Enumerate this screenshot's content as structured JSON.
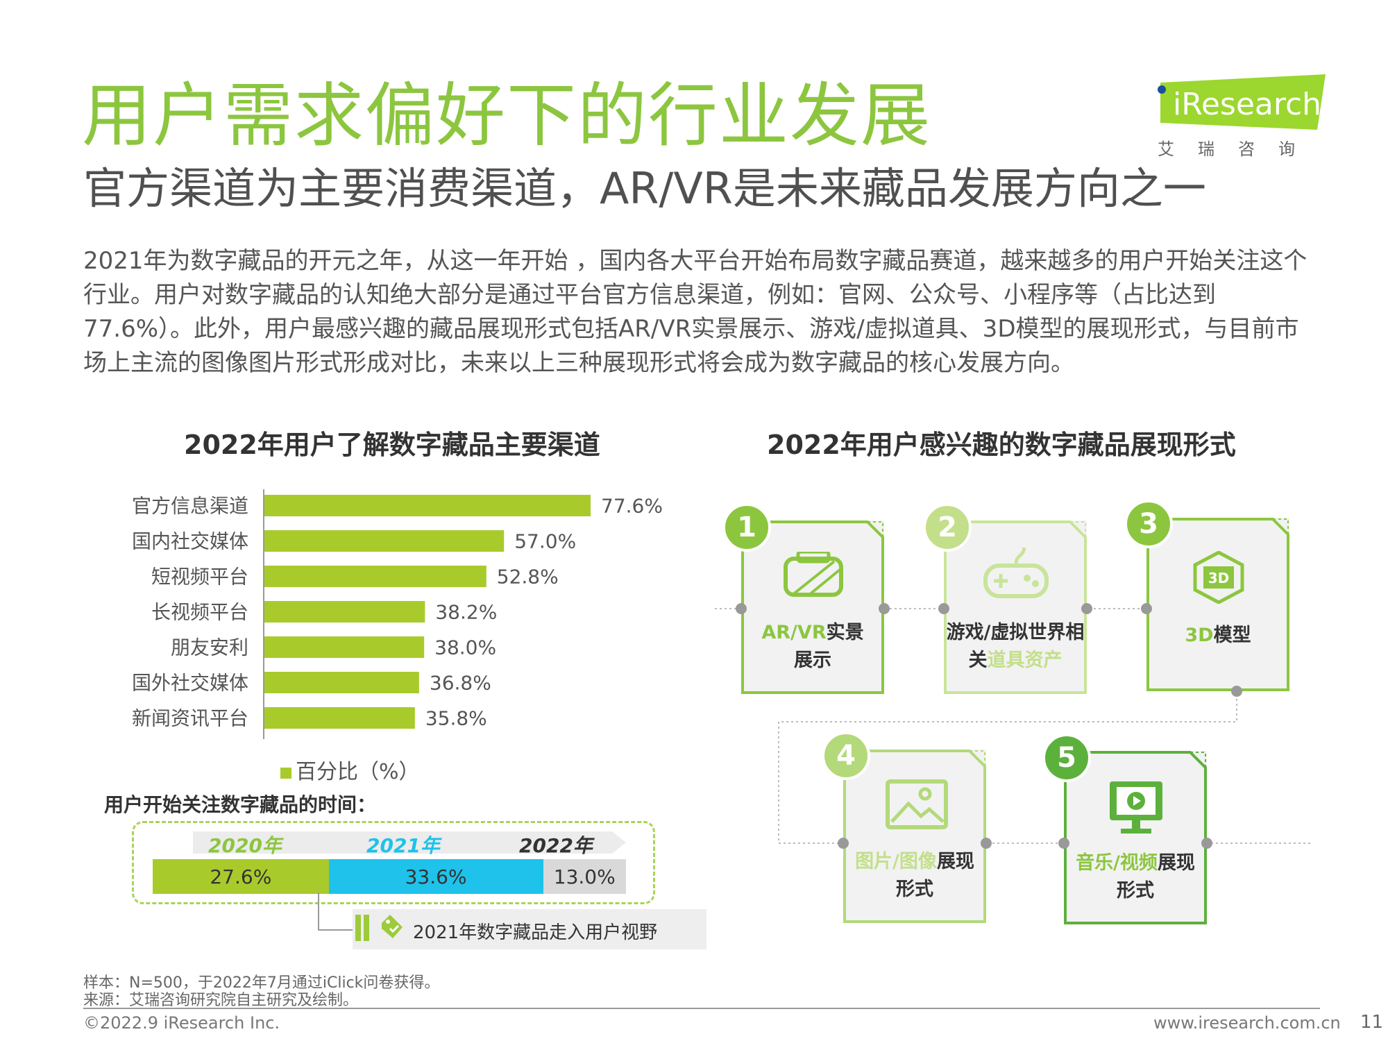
{
  "header": {
    "title": "用户需求偏好下的行业发展",
    "subtitle": "官方渠道为主要消费渠道，AR/VR是未来藏品发展方向之一",
    "body": "2021年为数字藏品的开元之年，从这一年开始 ，国内各大平台开始布局数字藏品赛道，越来越多的用户开始关注这个行业。用户对数字藏品的认知绝大部分是通过平台官方信息渠道，例如：官网、公众号、小程序等（占比达到77.6%）。此外，用户最感兴趣的藏品展现形式包括AR/VR实景展示、游戏/虚拟道具、3D模型的展现形式，与目前市场上主流的图像图片形式形成对比，未来以上三种展现形式将会成为数字藏品的核心发展方向。"
  },
  "logo": {
    "brand": "iResearch",
    "sub": "艾瑞咨询",
    "color": "#9bd72e"
  },
  "colors": {
    "accent": "#8cc63f",
    "bar": "#a8cb2b",
    "blue": "#1ec2ea",
    "gray": "#d9d9d9"
  },
  "chart_data": [
    {
      "type": "bar",
      "title": "2022年用户了解数字藏品主要渠道",
      "categories": [
        "官方信息渠道",
        "国内社交媒体",
        "短视频平台",
        "长视频平台",
        "朋友安利",
        "国外社交媒体",
        "新闻资讯平台"
      ],
      "values": [
        77.6,
        57.0,
        52.8,
        38.2,
        38.0,
        36.8,
        35.8
      ],
      "value_labels": [
        "77.6%",
        "57.0%",
        "52.8%",
        "38.2%",
        "38.0%",
        "36.8%",
        "35.8%"
      ],
      "series": [
        {
          "name": "百分比（%）",
          "values": [
            77.6,
            57.0,
            52.8,
            38.2,
            38.0,
            36.8,
            35.8
          ]
        }
      ],
      "orientation": "horizontal",
      "legend_position": "bottom"
    },
    {
      "type": "bar",
      "title": "用户开始关注数字藏品的时间：",
      "orientation": "stacked-horizontal",
      "categories": [
        "2020年",
        "2021年",
        "2022年"
      ],
      "values": [
        27.6,
        33.6,
        13.0
      ],
      "value_labels": [
        "27.6%",
        "33.6%",
        "13.0%"
      ],
      "colors": [
        "#a8cb2b",
        "#1ec2ea",
        "#d9d9d9"
      ],
      "annotation": "2021年数字藏品走入用户视野"
    }
  ],
  "forms": {
    "title": "2022年用户感兴趣的数字藏品展现形式",
    "items": [
      {
        "num": "1",
        "label_a": "AR/VR",
        "label_b": "实景",
        "label_c": "展示",
        "icon": "vr-headset-icon"
      },
      {
        "num": "2",
        "label_a": "游戏/虚拟世界相",
        "label_b": "关",
        "label_c": "道具资产",
        "icon": "gamepad-icon"
      },
      {
        "num": "3",
        "label_a": "3D",
        "label_b": "模型",
        "icon": "3d-cube-icon"
      },
      {
        "num": "4",
        "label_a": "图片/图像",
        "label_b": "展现",
        "label_c": "形式",
        "icon": "image-icon"
      },
      {
        "num": "5",
        "label_a": "音乐/视频",
        "label_b": "展现",
        "label_c": "形式",
        "icon": "video-monitor-icon"
      }
    ]
  },
  "footer": {
    "sample": "样本：N=500，于2022年7月通过iClick问卷获得。",
    "source": "来源：艾瑞咨询研究院自主研究及绘制。",
    "copyright": "©2022.9 iResearch Inc.",
    "website": "www.iresearch.com.cn",
    "page": "11"
  }
}
